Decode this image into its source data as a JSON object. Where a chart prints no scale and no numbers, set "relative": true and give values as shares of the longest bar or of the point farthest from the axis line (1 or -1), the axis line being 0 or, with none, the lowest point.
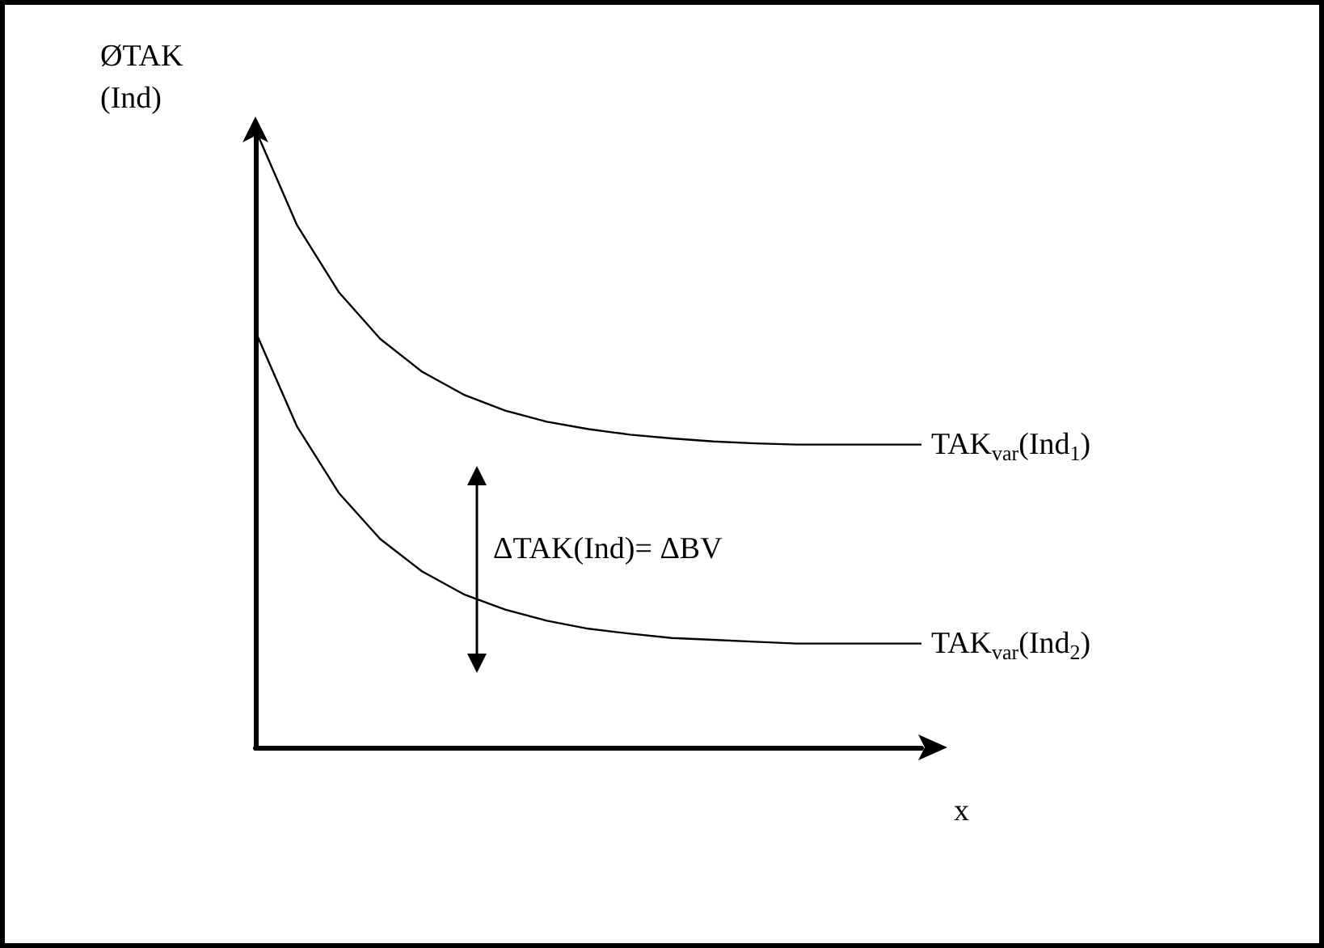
{
  "chart_data": {
    "type": "line",
    "relative": true,
    "xlabel": "x",
    "ylabel": "ØTAK (Ind)",
    "marker": "none",
    "legend": false,
    "categories": [
      null,
      null,
      null,
      null,
      null,
      null,
      null,
      null,
      null,
      null,
      null,
      null,
      null,
      null,
      null,
      null,
      null
    ],
    "series": [
      {
        "name": "TAK$_{var}$(Ind$_{1}$)",
        "color": "#000000",
        "values": [
          1.0,
          0.845,
          0.737,
          0.661,
          0.608,
          0.571,
          0.545,
          0.527,
          0.515,
          0.506,
          0.5,
          0.495,
          0.492,
          0.49,
          0.49,
          0.49,
          0.49
        ]
      },
      {
        "name": "TAK$_{var}$(Ind$_{2}$)",
        "color": "#000000",
        "values": [
          0.673,
          0.519,
          0.412,
          0.337,
          0.285,
          0.248,
          0.223,
          0.205,
          0.192,
          0.184,
          0.177,
          0.174,
          0.171,
          0.168,
          0.168,
          0.168,
          0.168
        ]
      }
    ],
    "annotations": [
      "ΔTAK(Ind)= ΔBV"
    ]
  }
}
